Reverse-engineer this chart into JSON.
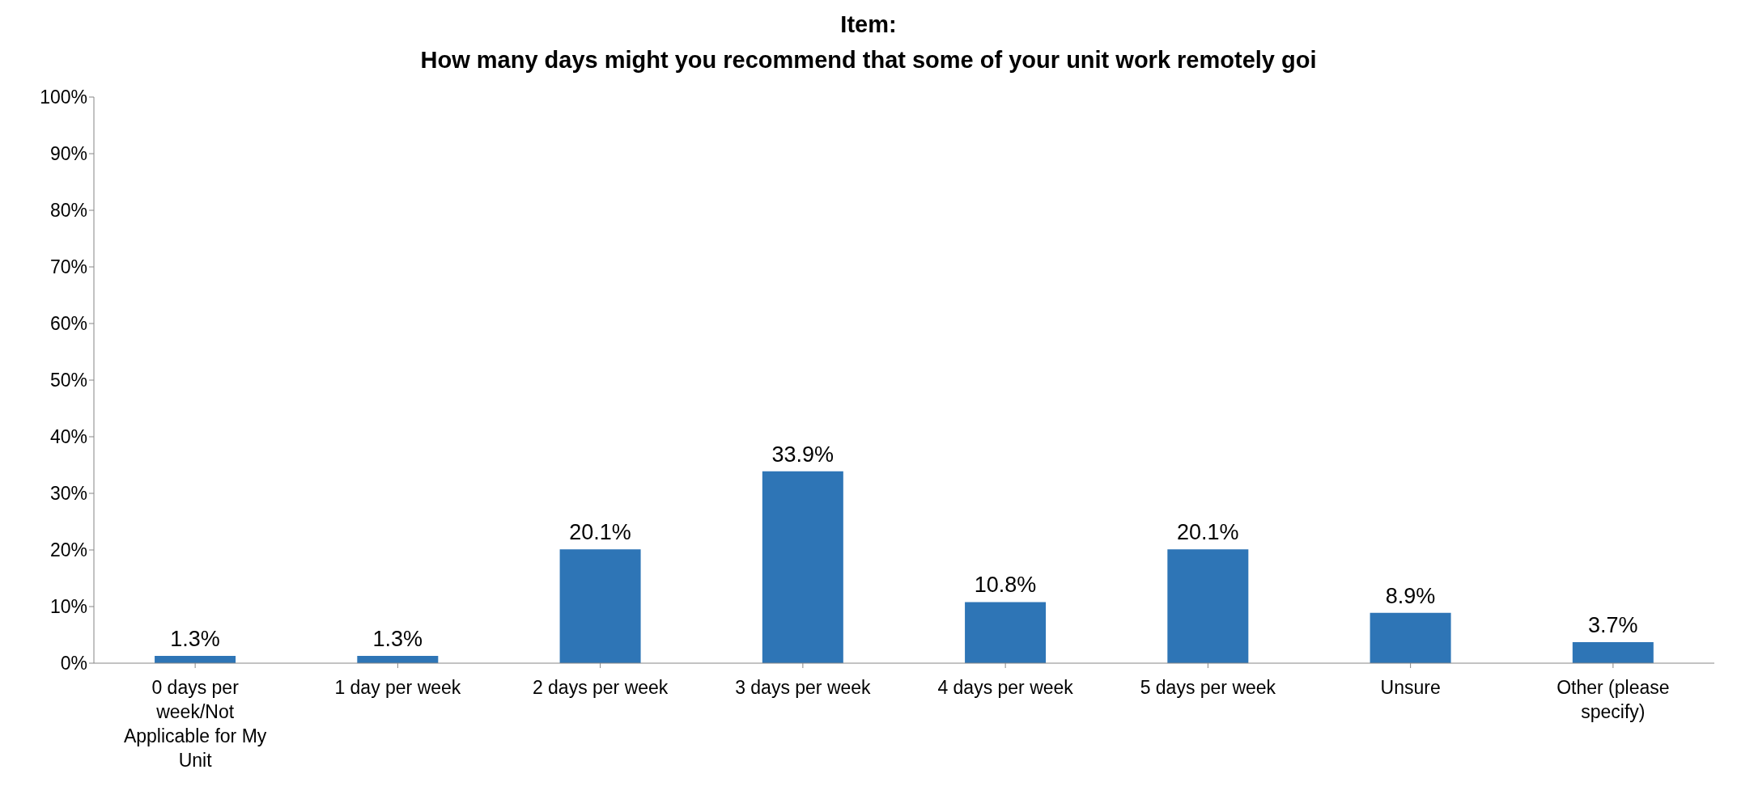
{
  "chart_data": {
    "type": "bar",
    "title": "Item:",
    "subtitle": "How many days might you recommend that some of your unit work remotely goi",
    "categories": [
      "0 days per week/Not Applicable for My Unit",
      "1 day per week",
      "2 days per week",
      "3 days per week",
      "4 days per week",
      "5 days per week",
      "Unsure",
      "Other (please specify)"
    ],
    "values": [
      1.3,
      1.3,
      20.1,
      33.9,
      10.8,
      20.1,
      8.9,
      3.7
    ],
    "value_labels": [
      "1.3%",
      "1.3%",
      "20.1%",
      "33.9%",
      "10.8%",
      "20.1%",
      "8.9%",
      "3.7%"
    ],
    "color": "#2e75b6",
    "ylim": [
      0,
      100
    ],
    "yticks": [
      {
        "value": 0,
        "label": "0%"
      },
      {
        "value": 10,
        "label": "10%"
      },
      {
        "value": 20,
        "label": "20%"
      },
      {
        "value": 30,
        "label": "30%"
      },
      {
        "value": 40,
        "label": "40%"
      },
      {
        "value": 50,
        "label": "50%"
      },
      {
        "value": 60,
        "label": "60%"
      },
      {
        "value": 70,
        "label": "70%"
      },
      {
        "value": 80,
        "label": "80%"
      },
      {
        "value": 90,
        "label": "90%"
      },
      {
        "value": 100,
        "label": "100%"
      }
    ],
    "grid": false,
    "legend": false
  }
}
